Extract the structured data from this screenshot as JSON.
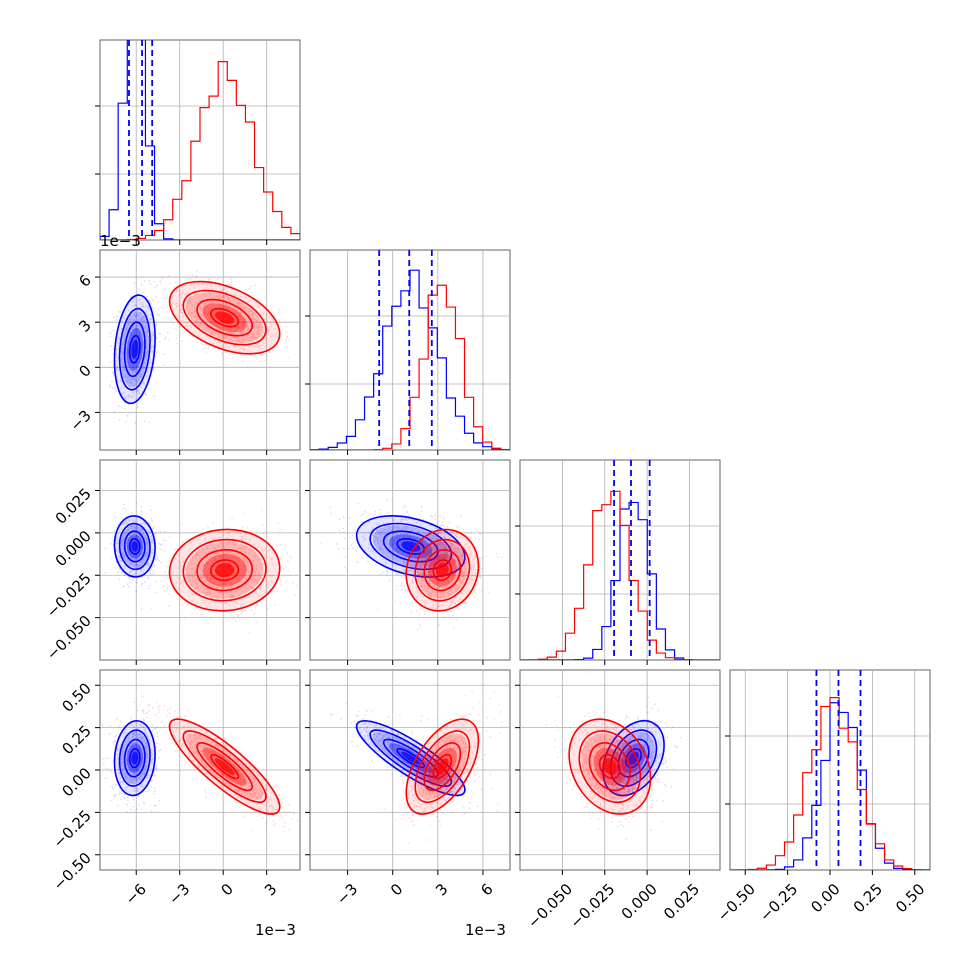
{
  "chart_data": {
    "type": "corner",
    "colors": {
      "series_a": "#0000ff",
      "series_b": "#ff0000"
    },
    "grid": true,
    "params": [
      {
        "range": [
          -0.0085,
          0.0053
        ],
        "scale": 1000,
        "offset_label": "1e−3",
        "ticks": [
          {
            "v": -6,
            "label": "−6"
          },
          {
            "v": -3,
            "label": "−3"
          },
          {
            "v": 0,
            "label": "0"
          },
          {
            "v": 3,
            "label": "3"
          }
        ]
      },
      {
        "range": [
          -0.0055,
          0.0078
        ],
        "scale": 1000,
        "offset_label": "1e−3",
        "ticks": [
          {
            "v": -3,
            "label": "−3"
          },
          {
            "v": 0,
            "label": "0"
          },
          {
            "v": 3,
            "label": "3"
          },
          {
            "v": 6,
            "label": "6"
          }
        ]
      },
      {
        "range": [
          -0.075,
          0.043
        ],
        "scale": 1,
        "offset_label": "",
        "ticks": [
          {
            "v": -0.05,
            "label": "−0.050"
          },
          {
            "v": -0.025,
            "label": "−0.025"
          },
          {
            "v": 0,
            "label": "0.000"
          },
          {
            "v": 0.025,
            "label": "0.025"
          }
        ]
      },
      {
        "range": [
          -0.59,
          0.59
        ],
        "scale": 1,
        "offset_label": "",
        "ticks": [
          {
            "v": -0.5,
            "label": "−0.50"
          },
          {
            "v": -0.25,
            "label": "−0.25"
          },
          {
            "v": 0,
            "label": "0.00"
          },
          {
            "v": 0.25,
            "label": "0.25"
          },
          {
            "v": 0.5,
            "label": "0.50"
          }
        ]
      }
    ],
    "series": [
      {
        "mean": [
          -0.0061,
          0.0012,
          -0.008,
          0.07
        ],
        "sd": [
          0.0007,
          0.0018,
          0.009,
          0.11
        ],
        "quantiles": [
          [
            -0.0065,
            -0.0056,
            -0.0049
          ],
          [
            -0.0009,
            0.0011,
            0.0026
          ],
          [
            -0.0195,
            -0.0095,
            0.0015
          ],
          [
            -0.08,
            0.05,
            0.18
          ]
        ],
        "hist_peak_scale": [
          1.6,
          1.0,
          1.0,
          1.0
        ]
      },
      {
        "mean": [
          0.0001,
          0.0033,
          -0.022,
          0.02
        ],
        "sd": [
          0.0019,
          0.0012,
          0.012,
          0.14
        ],
        "hist_peak_scale": [
          1.0,
          1.0,
          1.0,
          1.0
        ]
      }
    ],
    "correlations": [
      {
        "pairs": {
          "1,0": 0.2,
          "2,0": -0.05,
          "2,1": -0.35,
          "3,0": 0.1,
          "3,1": -0.85,
          "3,2": 0.35
        }
      },
      {
        "pairs": {
          "1,0": -0.45,
          "2,0": 0.05,
          "2,1": 0.1,
          "3,0": -0.85,
          "3,1": 0.55,
          "3,2": -0.25
        }
      }
    ]
  }
}
